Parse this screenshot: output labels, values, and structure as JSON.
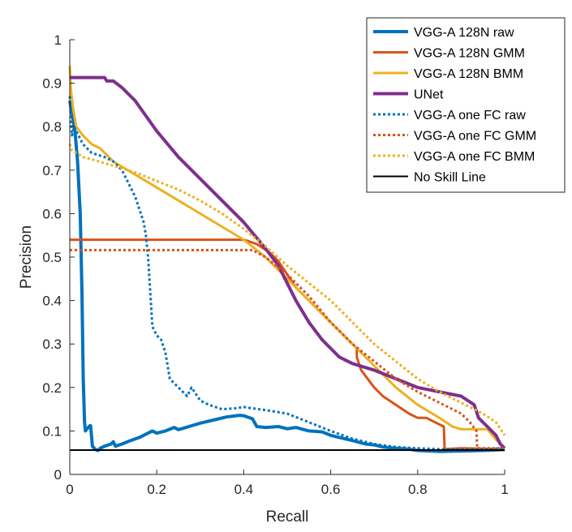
{
  "chart_data": {
    "type": "line",
    "title": "",
    "xlabel": "Recall",
    "ylabel": "Precision",
    "xlim": [
      0,
      1
    ],
    "ylim": [
      0,
      1
    ],
    "xticks": [
      0,
      0.2,
      0.4,
      0.6,
      0.8,
      1
    ],
    "xtick_labels": [
      "0",
      "0.2",
      "0.4",
      "0.6",
      "0.8",
      "1"
    ],
    "yticks": [
      0,
      0.1,
      0.2,
      0.3,
      0.4,
      0.5,
      0.6,
      0.7,
      0.8,
      0.9,
      1
    ],
    "ytick_labels": [
      "0",
      "0.1",
      "0.2",
      "0.3",
      "0.4",
      "0.5",
      "0.6",
      "0.7",
      "0.8",
      "0.9",
      "1"
    ],
    "grid": false,
    "legend_position": "top-right",
    "series": [
      {
        "name": "VGG-A 128N raw",
        "color": "#0072BD",
        "style": "solid",
        "width": "thick",
        "points": [
          [
            0,
            0.86
          ],
          [
            0.005,
            0.83
          ],
          [
            0.012,
            0.79
          ],
          [
            0.018,
            0.72
          ],
          [
            0.024,
            0.6
          ],
          [
            0.028,
            0.42
          ],
          [
            0.031,
            0.22
          ],
          [
            0.034,
            0.12
          ],
          [
            0.036,
            0.1
          ],
          [
            0.04,
            0.105
          ],
          [
            0.046,
            0.112
          ],
          [
            0.048,
            0.112
          ],
          [
            0.052,
            0.065
          ],
          [
            0.058,
            0.058
          ],
          [
            0.065,
            0.055
          ],
          [
            0.07,
            0.06
          ],
          [
            0.08,
            0.065
          ],
          [
            0.095,
            0.07
          ],
          [
            0.1,
            0.075
          ],
          [
            0.105,
            0.065
          ],
          [
            0.12,
            0.07
          ],
          [
            0.14,
            0.078
          ],
          [
            0.16,
            0.085
          ],
          [
            0.18,
            0.095
          ],
          [
            0.19,
            0.1
          ],
          [
            0.2,
            0.095
          ],
          [
            0.22,
            0.1
          ],
          [
            0.24,
            0.108
          ],
          [
            0.25,
            0.103
          ],
          [
            0.28,
            0.112
          ],
          [
            0.3,
            0.118
          ],
          [
            0.33,
            0.125
          ],
          [
            0.36,
            0.132
          ],
          [
            0.39,
            0.136
          ],
          [
            0.4,
            0.135
          ],
          [
            0.42,
            0.128
          ],
          [
            0.43,
            0.11
          ],
          [
            0.45,
            0.108
          ],
          [
            0.48,
            0.11
          ],
          [
            0.5,
            0.105
          ],
          [
            0.52,
            0.108
          ],
          [
            0.55,
            0.1
          ],
          [
            0.58,
            0.098
          ],
          [
            0.6,
            0.09
          ],
          [
            0.62,
            0.085
          ],
          [
            0.65,
            0.078
          ],
          [
            0.68,
            0.07
          ],
          [
            0.7,
            0.068
          ],
          [
            0.72,
            0.063
          ],
          [
            0.75,
            0.06
          ],
          [
            0.78,
            0.058
          ],
          [
            0.8,
            0.055
          ],
          [
            0.85,
            0.053
          ],
          [
            0.9,
            0.054
          ],
          [
            0.95,
            0.055
          ],
          [
            1,
            0.057
          ]
        ]
      },
      {
        "name": "VGG-A 128N GMM",
        "color": "#D95319",
        "style": "solid",
        "width": "normal",
        "points": [
          [
            0,
            0.54
          ],
          [
            0.4,
            0.54
          ],
          [
            0.43,
            0.53
          ],
          [
            0.46,
            0.51
          ],
          [
            0.48,
            0.49
          ],
          [
            0.5,
            0.46
          ],
          [
            0.52,
            0.43
          ],
          [
            0.55,
            0.4
          ],
          [
            0.58,
            0.37
          ],
          [
            0.6,
            0.35
          ],
          [
            0.62,
            0.33
          ],
          [
            0.64,
            0.31
          ],
          [
            0.66,
            0.29
          ],
          [
            0.66,
            0.27
          ],
          [
            0.67,
            0.24
          ],
          [
            0.7,
            0.2
          ],
          [
            0.72,
            0.18
          ],
          [
            0.75,
            0.16
          ],
          [
            0.78,
            0.14
          ],
          [
            0.8,
            0.13
          ],
          [
            0.82,
            0.13
          ],
          [
            0.84,
            0.12
          ],
          [
            0.86,
            0.11
          ],
          [
            0.862,
            0.06
          ],
          [
            0.862,
            0.058
          ],
          [
            0.9,
            0.06
          ],
          [
            1,
            0.058
          ]
        ]
      },
      {
        "name": "VGG-A 128N BMM",
        "color": "#EDB120",
        "style": "solid",
        "width": "normal",
        "points": [
          [
            0,
            0.94
          ],
          [
            0.003,
            0.88
          ],
          [
            0.008,
            0.84
          ],
          [
            0.015,
            0.8
          ],
          [
            0.03,
            0.78
          ],
          [
            0.05,
            0.76
          ],
          [
            0.07,
            0.75
          ],
          [
            0.1,
            0.72
          ],
          [
            0.15,
            0.69
          ],
          [
            0.2,
            0.66
          ],
          [
            0.25,
            0.63
          ],
          [
            0.3,
            0.6
          ],
          [
            0.35,
            0.57
          ],
          [
            0.4,
            0.54
          ],
          [
            0.45,
            0.5
          ],
          [
            0.5,
            0.45
          ],
          [
            0.55,
            0.4
          ],
          [
            0.6,
            0.35
          ],
          [
            0.63,
            0.32
          ],
          [
            0.65,
            0.3
          ],
          [
            0.7,
            0.25
          ],
          [
            0.75,
            0.2
          ],
          [
            0.8,
            0.16
          ],
          [
            0.85,
            0.13
          ],
          [
            0.88,
            0.11
          ],
          [
            0.9,
            0.104
          ],
          [
            0.95,
            0.104
          ],
          [
            0.96,
            0.104
          ],
          [
            0.98,
            0.08
          ],
          [
            1,
            0.062
          ]
        ]
      },
      {
        "name": "UNet",
        "color": "#7E2F8E",
        "style": "solid",
        "width": "thick",
        "points": [
          [
            0,
            0.913
          ],
          [
            0.08,
            0.913
          ],
          [
            0.085,
            0.905
          ],
          [
            0.1,
            0.905
          ],
          [
            0.12,
            0.89
          ],
          [
            0.15,
            0.86
          ],
          [
            0.2,
            0.79
          ],
          [
            0.25,
            0.73
          ],
          [
            0.3,
            0.68
          ],
          [
            0.35,
            0.63
          ],
          [
            0.4,
            0.58
          ],
          [
            0.45,
            0.52
          ],
          [
            0.48,
            0.48
          ],
          [
            0.5,
            0.44
          ],
          [
            0.52,
            0.4
          ],
          [
            0.55,
            0.35
          ],
          [
            0.58,
            0.31
          ],
          [
            0.6,
            0.29
          ],
          [
            0.62,
            0.27
          ],
          [
            0.65,
            0.255
          ],
          [
            0.7,
            0.24
          ],
          [
            0.75,
            0.22
          ],
          [
            0.8,
            0.2
          ],
          [
            0.85,
            0.19
          ],
          [
            0.9,
            0.18
          ],
          [
            0.93,
            0.16
          ],
          [
            0.94,
            0.13
          ],
          [
            0.96,
            0.11
          ],
          [
            0.98,
            0.09
          ],
          [
            0.99,
            0.07
          ],
          [
            1,
            0.06
          ]
        ]
      },
      {
        "name": "VGG-A one FC raw",
        "color": "#0072BD",
        "style": "dotted",
        "width": "normal",
        "points": [
          [
            0,
            0.87
          ],
          [
            0.005,
            0.78
          ],
          [
            0.01,
            0.8
          ],
          [
            0.02,
            0.78
          ],
          [
            0.03,
            0.76
          ],
          [
            0.05,
            0.74
          ],
          [
            0.08,
            0.73
          ],
          [
            0.1,
            0.72
          ],
          [
            0.12,
            0.7
          ],
          [
            0.13,
            0.68
          ],
          [
            0.14,
            0.66
          ],
          [
            0.15,
            0.64
          ],
          [
            0.16,
            0.61
          ],
          [
            0.17,
            0.58
          ],
          [
            0.175,
            0.55
          ],
          [
            0.18,
            0.5
          ],
          [
            0.185,
            0.42
          ],
          [
            0.19,
            0.34
          ],
          [
            0.2,
            0.32
          ],
          [
            0.21,
            0.31
          ],
          [
            0.22,
            0.28
          ],
          [
            0.23,
            0.22
          ],
          [
            0.25,
            0.2
          ],
          [
            0.27,
            0.18
          ],
          [
            0.28,
            0.2
          ],
          [
            0.3,
            0.17
          ],
          [
            0.32,
            0.16
          ],
          [
            0.35,
            0.15
          ],
          [
            0.38,
            0.152
          ],
          [
            0.4,
            0.155
          ],
          [
            0.42,
            0.152
          ],
          [
            0.45,
            0.148
          ],
          [
            0.5,
            0.14
          ],
          [
            0.55,
            0.12
          ],
          [
            0.6,
            0.1
          ],
          [
            0.65,
            0.082
          ],
          [
            0.7,
            0.07
          ],
          [
            0.75,
            0.063
          ],
          [
            0.8,
            0.06
          ],
          [
            0.85,
            0.058
          ],
          [
            0.9,
            0.058
          ],
          [
            0.95,
            0.058
          ],
          [
            1,
            0.06
          ]
        ]
      },
      {
        "name": "VGG-A one FC GMM",
        "color": "#D95319",
        "style": "dotted",
        "width": "normal",
        "points": [
          [
            0,
            0.516
          ],
          [
            0.42,
            0.516
          ],
          [
            0.45,
            0.5
          ],
          [
            0.5,
            0.46
          ],
          [
            0.55,
            0.41
          ],
          [
            0.6,
            0.35
          ],
          [
            0.65,
            0.3
          ],
          [
            0.7,
            0.26
          ],
          [
            0.75,
            0.22
          ],
          [
            0.8,
            0.19
          ],
          [
            0.85,
            0.165
          ],
          [
            0.88,
            0.15
          ],
          [
            0.9,
            0.14
          ],
          [
            0.92,
            0.12
          ],
          [
            0.935,
            0.1
          ],
          [
            0.937,
            0.06
          ],
          [
            1,
            0.06
          ]
        ]
      },
      {
        "name": "VGG-A one FC BMM",
        "color": "#EDB120",
        "style": "dotted",
        "width": "normal",
        "points": [
          [
            0,
            0.76
          ],
          [
            0.005,
            0.745
          ],
          [
            0.015,
            0.74
          ],
          [
            0.03,
            0.73
          ],
          [
            0.05,
            0.725
          ],
          [
            0.1,
            0.71
          ],
          [
            0.15,
            0.695
          ],
          [
            0.2,
            0.675
          ],
          [
            0.25,
            0.655
          ],
          [
            0.3,
            0.63
          ],
          [
            0.35,
            0.6
          ],
          [
            0.4,
            0.565
          ],
          [
            0.45,
            0.525
          ],
          [
            0.5,
            0.48
          ],
          [
            0.55,
            0.44
          ],
          [
            0.6,
            0.4
          ],
          [
            0.65,
            0.35
          ],
          [
            0.7,
            0.3
          ],
          [
            0.75,
            0.26
          ],
          [
            0.8,
            0.22
          ],
          [
            0.85,
            0.19
          ],
          [
            0.9,
            0.165
          ],
          [
            0.95,
            0.14
          ],
          [
            0.98,
            0.12
          ],
          [
            1,
            0.09
          ]
        ]
      },
      {
        "name": "No Skill Line",
        "color": "#000000",
        "style": "solid",
        "width": "thin",
        "points": [
          [
            0,
            0.056
          ],
          [
            1,
            0.056
          ]
        ]
      }
    ]
  }
}
